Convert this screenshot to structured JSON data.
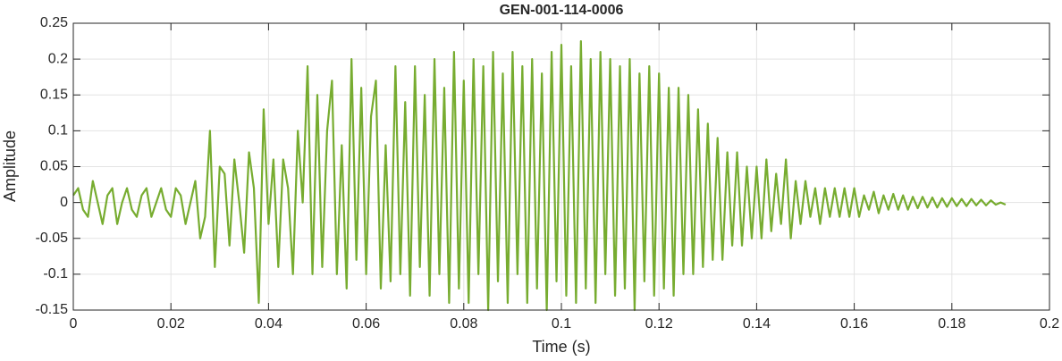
{
  "chart_data": {
    "type": "line",
    "title": "GEN-001-114-0006",
    "xlabel": "Time (s)",
    "ylabel": "Amplitude",
    "x": [
      0,
      0.001,
      0.002,
      0.003,
      0.004,
      0.005,
      0.006,
      0.007,
      0.008,
      0.009,
      0.01,
      0.011,
      0.012,
      0.013,
      0.014,
      0.015,
      0.016,
      0.017,
      0.018,
      0.019,
      0.02,
      0.021,
      0.022,
      0.023,
      0.024,
      0.025,
      0.026,
      0.027,
      0.028,
      0.029,
      0.03,
      0.031,
      0.032,
      0.033,
      0.034,
      0.035,
      0.036,
      0.037,
      0.038,
      0.039,
      0.04,
      0.041,
      0.042,
      0.043,
      0.044,
      0.045,
      0.046,
      0.047,
      0.048,
      0.049,
      0.05,
      0.051,
      0.052,
      0.053,
      0.054,
      0.055,
      0.056,
      0.057,
      0.058,
      0.059,
      0.06,
      0.061,
      0.062,
      0.063,
      0.064,
      0.065,
      0.066,
      0.067,
      0.068,
      0.069,
      0.07,
      0.071,
      0.072,
      0.073,
      0.074,
      0.075,
      0.076,
      0.077,
      0.078,
      0.079,
      0.08,
      0.081,
      0.082,
      0.083,
      0.084,
      0.085,
      0.086,
      0.087,
      0.088,
      0.089,
      0.09,
      0.091,
      0.092,
      0.093,
      0.094,
      0.095,
      0.096,
      0.097,
      0.098,
      0.099,
      0.1,
      0.101,
      0.102,
      0.103,
      0.104,
      0.105,
      0.106,
      0.107,
      0.108,
      0.109,
      0.11,
      0.111,
      0.112,
      0.113,
      0.114,
      0.115,
      0.116,
      0.117,
      0.118,
      0.119,
      0.12,
      0.121,
      0.122,
      0.123,
      0.124,
      0.125,
      0.126,
      0.127,
      0.128,
      0.129,
      0.13,
      0.131,
      0.132,
      0.133,
      0.134,
      0.135,
      0.136,
      0.137,
      0.138,
      0.139,
      0.14,
      0.141,
      0.142,
      0.143,
      0.144,
      0.145,
      0.146,
      0.147,
      0.148,
      0.149,
      0.15,
      0.151,
      0.152,
      0.153,
      0.154,
      0.155,
      0.156,
      0.157,
      0.158,
      0.159,
      0.16,
      0.161,
      0.162,
      0.163,
      0.164,
      0.165,
      0.166,
      0.167,
      0.168,
      0.169,
      0.17,
      0.171,
      0.172,
      0.173,
      0.174,
      0.175,
      0.176,
      0.177,
      0.178,
      0.179,
      0.18,
      0.181,
      0.182,
      0.183,
      0.184,
      0.185,
      0.186,
      0.187,
      0.188,
      0.189,
      0.19,
      0.191
    ],
    "series": [
      {
        "color": "#77ac30",
        "values": [
          0.01,
          0.02,
          -0.01,
          -0.02,
          0.03,
          0.0,
          -0.03,
          0.01,
          0.02,
          -0.03,
          0.0,
          0.02,
          -0.01,
          -0.02,
          0.01,
          0.02,
          -0.02,
          0.0,
          0.02,
          -0.01,
          -0.02,
          0.02,
          0.01,
          -0.03,
          0.0,
          0.03,
          -0.05,
          -0.02,
          0.1,
          -0.09,
          0.05,
          0.04,
          -0.06,
          0.06,
          0.0,
          -0.07,
          0.07,
          0.02,
          -0.14,
          0.13,
          -0.03,
          0.06,
          -0.09,
          0.06,
          0.02,
          -0.1,
          0.1,
          0.0,
          0.19,
          -0.1,
          0.15,
          -0.09,
          0.1,
          0.17,
          -0.1,
          0.08,
          -0.12,
          0.2,
          -0.08,
          0.16,
          -0.1,
          0.12,
          0.17,
          -0.12,
          0.08,
          -0.11,
          0.19,
          -0.1,
          0.14,
          -0.13,
          0.19,
          -0.09,
          0.15,
          -0.13,
          0.2,
          -0.1,
          0.16,
          -0.14,
          0.21,
          -0.12,
          0.17,
          -0.14,
          0.2,
          -0.1,
          0.19,
          -0.15,
          0.21,
          -0.11,
          0.18,
          -0.14,
          0.21,
          -0.1,
          0.19,
          -0.14,
          0.2,
          -0.12,
          0.18,
          -0.15,
          0.21,
          -0.11,
          0.22,
          -0.13,
          0.19,
          -0.14,
          0.225,
          -0.12,
          0.2,
          -0.14,
          0.21,
          -0.1,
          0.2,
          -0.13,
          0.19,
          -0.12,
          0.2,
          -0.15,
          0.18,
          -0.11,
          0.19,
          -0.13,
          0.18,
          -0.12,
          0.16,
          -0.13,
          0.16,
          -0.1,
          0.15,
          -0.1,
          0.13,
          -0.09,
          0.11,
          -0.08,
          0.09,
          -0.08,
          0.07,
          -0.06,
          0.07,
          -0.06,
          0.05,
          -0.05,
          0.05,
          -0.05,
          0.06,
          -0.04,
          0.04,
          -0.03,
          0.06,
          -0.05,
          0.03,
          -0.03,
          0.03,
          -0.02,
          0.02,
          -0.03,
          0.02,
          -0.02,
          0.02,
          -0.02,
          0.02,
          -0.02,
          0.02,
          -0.02,
          0.01,
          -0.01,
          0.015,
          -0.015,
          0.01,
          -0.01,
          0.012,
          -0.01,
          0.01,
          -0.01,
          0.008,
          -0.008,
          0.008,
          -0.007,
          0.007,
          -0.007,
          0.006,
          -0.006,
          0.006,
          -0.005,
          0.005,
          -0.005,
          0.005,
          -0.004,
          0.004,
          -0.004,
          0.003,
          -0.003,
          0.0,
          -0.003
        ]
      }
    ],
    "xlim": [
      0,
      0.2
    ],
    "xticks": [
      0,
      0.02,
      0.04,
      0.06,
      0.08,
      0.1,
      0.12,
      0.14,
      0.16,
      0.18,
      0.2
    ],
    "ylim": [
      -0.15,
      0.25
    ],
    "yticks": [
      -0.15,
      -0.1,
      -0.05,
      0,
      0.05,
      0.1,
      0.15,
      0.2,
      0.25
    ],
    "grid": true
  }
}
